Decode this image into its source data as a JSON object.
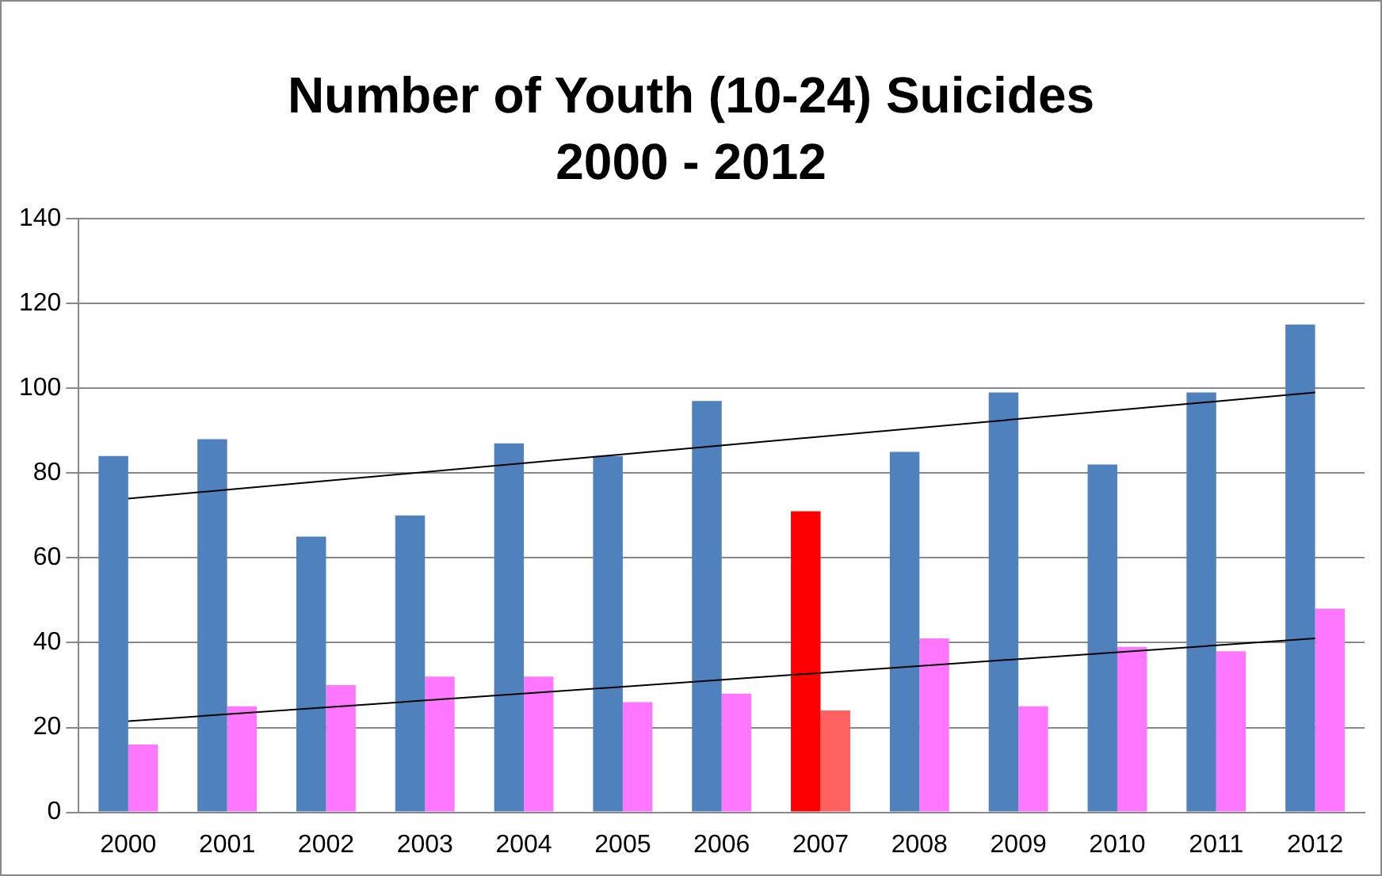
{
  "chart_data": {
    "type": "bar",
    "title": "Number of Youth (10-24) Suicides",
    "subtitle": "2000 - 2012",
    "categories": [
      "2000",
      "2001",
      "2002",
      "2003",
      "2004",
      "2005",
      "2006",
      "2007",
      "2008",
      "2009",
      "2010",
      "2011",
      "2012"
    ],
    "series": [
      {
        "colors": [
          "#4f81bd",
          "#4f81bd",
          "#4f81bd",
          "#4f81bd",
          "#4f81bd",
          "#4f81bd",
          "#4f81bd",
          "#ff0000",
          "#4f81bd",
          "#4f81bd",
          "#4f81bd",
          "#4f81bd",
          "#4f81bd"
        ],
        "values": [
          84,
          88,
          65,
          70,
          87,
          84,
          97,
          71,
          85,
          99,
          82,
          99,
          115
        ]
      },
      {
        "colors": [
          "#ff77ff",
          "#ff77ff",
          "#ff77ff",
          "#ff77ff",
          "#ff77ff",
          "#ff77ff",
          "#ff77ff",
          "#ff6161",
          "#ff77ff",
          "#ff77ff",
          "#ff77ff",
          "#ff77ff",
          "#ff77ff"
        ],
        "values": [
          16,
          25,
          30,
          32,
          32,
          26,
          28,
          24,
          41,
          25,
          39,
          38,
          48
        ]
      },
      {
        "type": "line",
        "color": "#000000",
        "values": [
          74,
          null,
          null,
          null,
          null,
          null,
          null,
          null,
          null,
          null,
          null,
          null,
          99
        ]
      },
      {
        "type": "line",
        "color": "#000000",
        "values": [
          21.5,
          null,
          null,
          null,
          null,
          null,
          null,
          null,
          null,
          null,
          null,
          null,
          41
        ]
      }
    ],
    "ylim": [
      0,
      140
    ],
    "yticks": [
      0,
      20,
      40,
      60,
      80,
      100,
      120,
      140
    ],
    "grid": "y",
    "legend": false,
    "marker": "none"
  }
}
